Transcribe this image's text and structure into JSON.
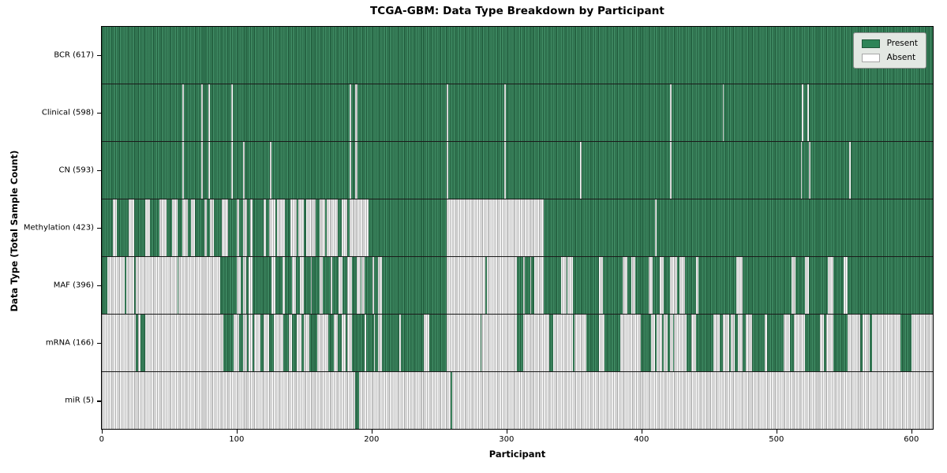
{
  "chart_data": {
    "type": "heatmap",
    "title": "TCGA-GBM: Data Type Breakdown by Participant",
    "xlabel": "Participant",
    "ylabel": "Data Type (Total Sample Count)",
    "legend": [
      "Present",
      "Absent"
    ],
    "legend_position": "upper right",
    "x_ticks": [
      0,
      100,
      200,
      300,
      400,
      500,
      600
    ],
    "x_range": [
      0,
      617
    ],
    "grid": false,
    "colors": {
      "present": "#2e8457",
      "absent": "#ffffff"
    },
    "rows_note": "Each row = one data type; 617 participant columns; 'base' is the fill, 'runs' are [start,end) participant-index spans of the OPPOSITE state (estimated from pixels).",
    "rows": [
      {
        "label": "BCR (617)",
        "count": 617,
        "base": "present",
        "runs": []
      },
      {
        "label": "Clinical (598)",
        "count": 598,
        "base": "present",
        "runs": [
          [
            60,
            61
          ],
          [
            74,
            75
          ],
          [
            79,
            80
          ],
          [
            96,
            97
          ],
          [
            184,
            185
          ],
          [
            188,
            190
          ],
          [
            256,
            257
          ],
          [
            299,
            300
          ],
          [
            422,
            423
          ],
          [
            461,
            462
          ],
          [
            520,
            521
          ],
          [
            524,
            525
          ]
        ]
      },
      {
        "label": "CN (593)",
        "count": 593,
        "base": "present",
        "runs": [
          [
            60,
            61
          ],
          [
            74,
            75
          ],
          [
            79,
            80
          ],
          [
            96,
            97
          ],
          [
            105,
            106
          ],
          [
            125,
            126
          ],
          [
            184,
            185
          ],
          [
            188,
            190
          ],
          [
            256,
            257
          ],
          [
            299,
            300
          ],
          [
            355,
            356
          ],
          [
            422,
            423
          ],
          [
            519,
            520
          ],
          [
            525,
            526
          ],
          [
            555,
            556
          ]
        ]
      },
      {
        "label": "Methylation (423)",
        "count": 423,
        "base": "present",
        "runs": [
          [
            8,
            11
          ],
          [
            20,
            24
          ],
          [
            32,
            36
          ],
          [
            43,
            48
          ],
          [
            52,
            56
          ],
          [
            60,
            64
          ],
          [
            66,
            69
          ],
          [
            76,
            78
          ],
          [
            80,
            83
          ],
          [
            89,
            94
          ],
          [
            100,
            102
          ],
          [
            105,
            108
          ],
          [
            110,
            112
          ],
          [
            120,
            122
          ],
          [
            124,
            129
          ],
          [
            130,
            136
          ],
          [
            140,
            145
          ],
          [
            146,
            150
          ],
          [
            152,
            159
          ],
          [
            162,
            166
          ],
          [
            167,
            175
          ],
          [
            178,
            182
          ],
          [
            184,
            198
          ],
          [
            256,
            328
          ],
          [
            411,
            412
          ]
        ]
      },
      {
        "label": "MAF (396)",
        "count": 396,
        "base": "absent",
        "runs": [
          [
            0,
            4
          ],
          [
            17,
            18
          ],
          [
            24,
            25
          ],
          [
            56,
            57
          ],
          [
            88,
            100
          ],
          [
            103,
            105
          ],
          [
            107,
            109
          ],
          [
            112,
            126
          ],
          [
            129,
            134
          ],
          [
            136,
            141
          ],
          [
            144,
            147
          ],
          [
            150,
            155
          ],
          [
            156,
            162
          ],
          [
            164,
            170
          ],
          [
            171,
            176
          ],
          [
            179,
            182
          ],
          [
            186,
            189
          ],
          [
            192,
            193
          ],
          [
            195,
            201
          ],
          [
            202,
            205
          ],
          [
            208,
            256
          ],
          [
            285,
            286
          ],
          [
            308,
            313
          ],
          [
            314,
            318
          ],
          [
            319,
            321
          ],
          [
            328,
            341
          ],
          [
            345,
            346
          ],
          [
            350,
            369
          ],
          [
            372,
            387
          ],
          [
            390,
            393
          ],
          [
            396,
            406
          ],
          [
            409,
            414
          ],
          [
            417,
            422
          ],
          [
            427,
            429
          ],
          [
            433,
            441
          ],
          [
            443,
            471
          ],
          [
            476,
            512
          ],
          [
            515,
            522
          ],
          [
            525,
            539
          ],
          [
            543,
            551
          ],
          [
            554,
            617
          ]
        ]
      },
      {
        "label": "mRNA (166)",
        "count": 166,
        "base": "absent",
        "runs": [
          [
            25,
            27
          ],
          [
            29,
            32
          ],
          [
            90,
            98
          ],
          [
            102,
            105
          ],
          [
            108,
            109
          ],
          [
            112,
            113
          ],
          [
            118,
            120
          ],
          [
            124,
            128
          ],
          [
            135,
            139
          ],
          [
            141,
            145
          ],
          [
            148,
            150
          ],
          [
            154,
            160
          ],
          [
            168,
            172
          ],
          [
            175,
            178
          ],
          [
            181,
            182
          ],
          [
            186,
            195
          ],
          [
            196,
            202
          ],
          [
            203,
            205
          ],
          [
            208,
            221
          ],
          [
            222,
            239
          ],
          [
            243,
            256
          ],
          [
            281,
            282
          ],
          [
            308,
            313
          ],
          [
            332,
            335
          ],
          [
            350,
            351
          ],
          [
            360,
            369
          ],
          [
            373,
            385
          ],
          [
            400,
            408
          ],
          [
            411,
            412
          ],
          [
            416,
            417
          ],
          [
            420,
            422
          ],
          [
            424,
            425
          ],
          [
            434,
            438
          ],
          [
            441,
            454
          ],
          [
            459,
            461
          ],
          [
            466,
            467
          ],
          [
            470,
            472
          ],
          [
            476,
            478
          ],
          [
            483,
            492
          ],
          [
            494,
            506
          ],
          [
            511,
            514
          ],
          [
            522,
            533
          ],
          [
            536,
            538
          ],
          [
            543,
            554
          ],
          [
            563,
            565
          ],
          [
            570,
            572
          ],
          [
            593,
            601
          ]
        ]
      },
      {
        "label": "miR (5)",
        "count": 5,
        "base": "absent",
        "runs": [
          [
            188,
            191
          ],
          [
            259,
            260
          ]
        ]
      }
    ]
  }
}
